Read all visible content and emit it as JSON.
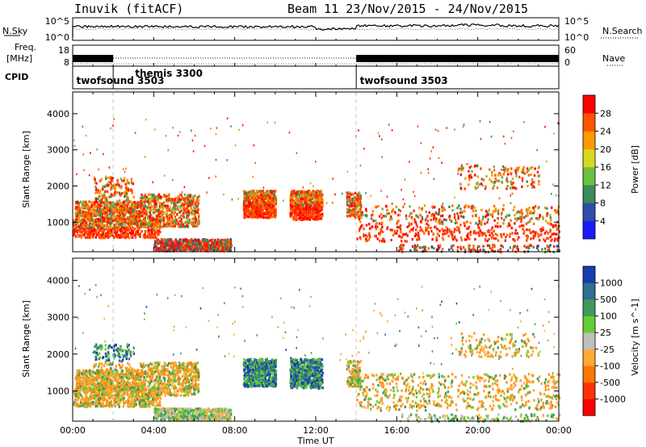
{
  "title_left": "Inuvik (fitACF)",
  "title_right": "Beam 11   23/Nov/2015 - 24/Nov/2015",
  "left_labels": {
    "nsky": "N.Sky",
    "freq_top": "Freq.",
    "freq_unit": "[MHz]",
    "cpid": "CPID"
  },
  "right_labels": {
    "nsearch": "N.Search",
    "nave": "Nave"
  },
  "nsky_ticks": [
    "10^5",
    "10^0"
  ],
  "freq_ticks": [
    "18",
    "8"
  ],
  "nave_ticks": [
    "60",
    "0"
  ],
  "cpid_labels": [
    {
      "text": "themis 3300",
      "hour": 3.0,
      "row": "upper"
    },
    {
      "text": "twofsound 3503",
      "hour": 0.1,
      "row": "lower"
    },
    {
      "text": "twofsound 3503",
      "hour": 14.1,
      "row": "lower"
    }
  ],
  "cpid_boundaries_hours": [
    2.0,
    14.0
  ],
  "chart_data": [
    {
      "type": "heatmap",
      "name": "power-panel",
      "ylabel": "Slant Range [km]",
      "xlim": [
        0,
        24
      ],
      "ylim": [
        180,
        4600
      ],
      "ytick_values": [
        1000,
        2000,
        3000,
        4000
      ],
      "ytick_labels": [
        "1000",
        "2000",
        "3000",
        "4000"
      ],
      "colorbar_label": "Power [dB]",
      "colorbar_ticks": [
        "4",
        "8",
        "12",
        "16",
        "20",
        "24",
        "28"
      ],
      "colorbar_colors": [
        "#1a1aff",
        "#2b4fa8",
        "#3c8a5a",
        "#6cc040",
        "#d8d820",
        "#ff9900",
        "#ff5500",
        "#ff0000"
      ]
    },
    {
      "type": "heatmap",
      "name": "velocity-panel",
      "ylabel": "Slant Range [km]",
      "xlim": [
        0,
        24
      ],
      "ylim": [
        180,
        4600
      ],
      "ytick_values": [
        1000,
        2000,
        3000,
        4000
      ],
      "ytick_labels": [
        "1000",
        "2000",
        "3000",
        "4000"
      ],
      "colorbar_label": "Velocity [m s^-1]",
      "colorbar_ticks": [
        "1000",
        "500",
        "100",
        "25",
        "-25",
        "-100",
        "-500",
        "-1000"
      ],
      "colorbar_colors": [
        "#1a3bb0",
        "#2f6f8f",
        "#3d9a5a",
        "#66cc33",
        "#bfbfbf",
        "#ffaa33",
        "#ff7700",
        "#ff3300",
        "#ff0000"
      ]
    }
  ],
  "xaxis": {
    "label": "Time UT",
    "tick_labels": [
      "00:00",
      "04:00",
      "08:00",
      "12:00",
      "16:00",
      "20:00",
      "00:00"
    ],
    "tick_hours": [
      0,
      4,
      8,
      12,
      16,
      20,
      24
    ]
  }
}
